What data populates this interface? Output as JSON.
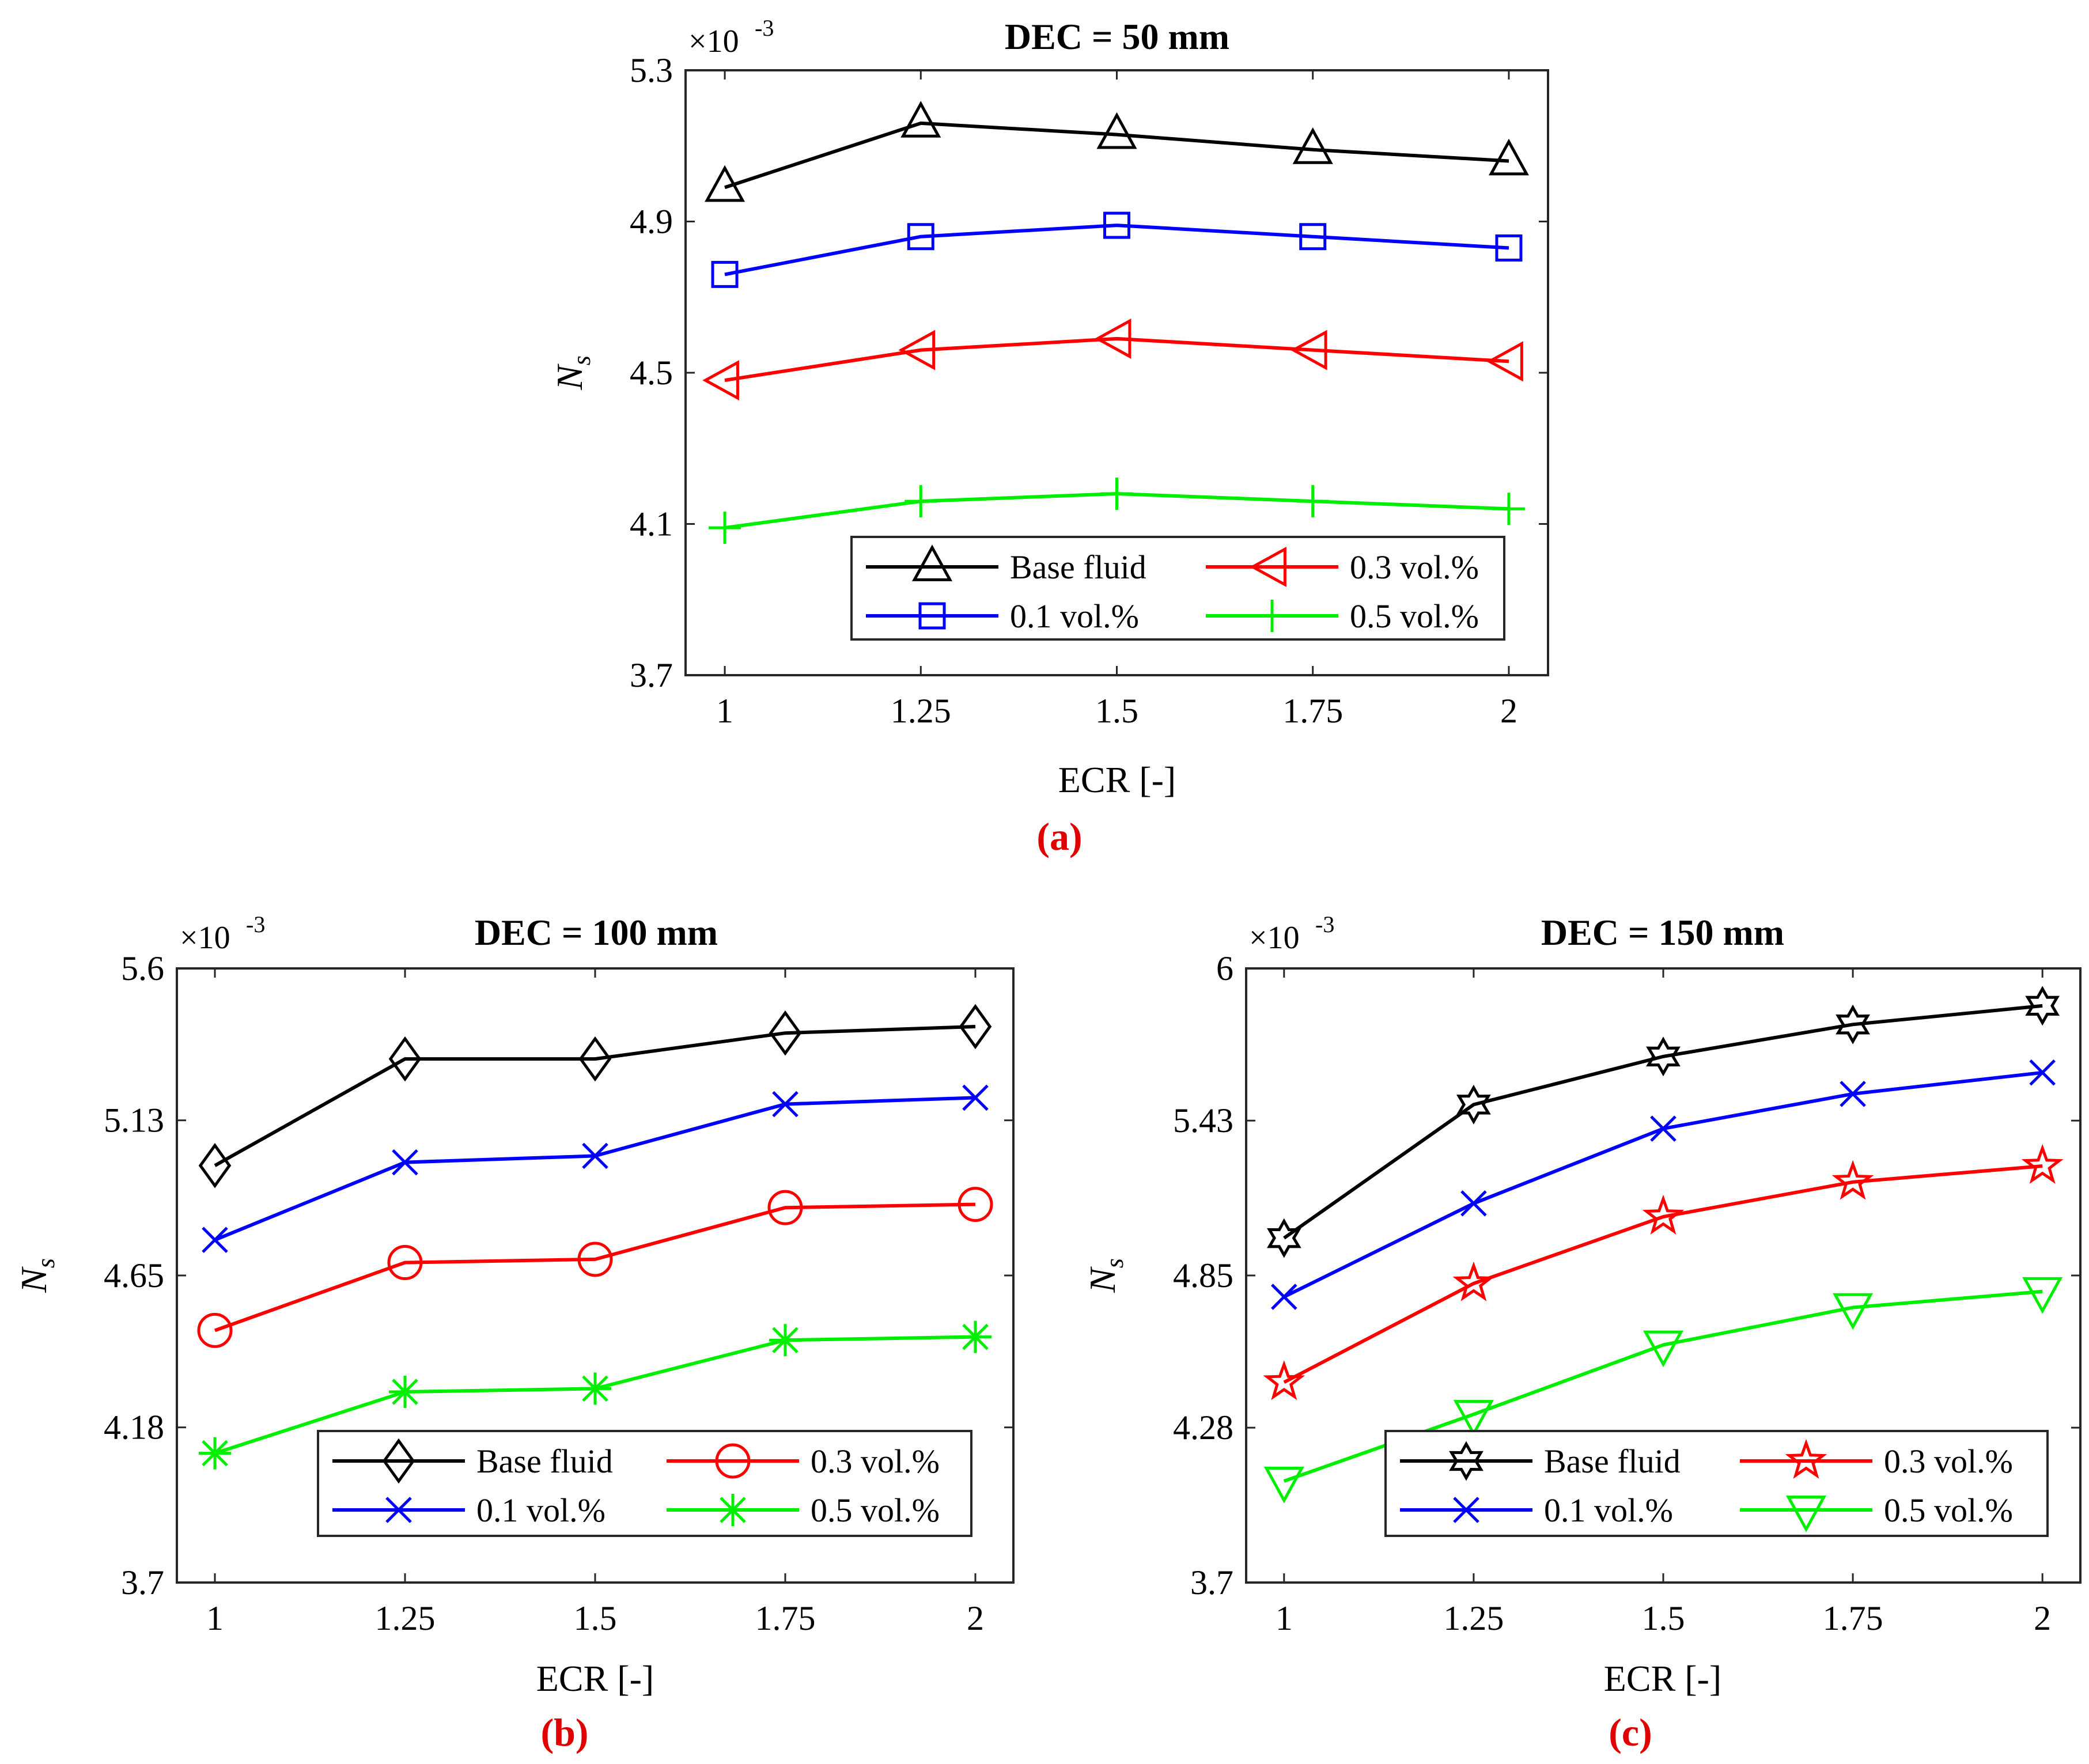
{
  "chart_data": [
    {
      "type": "line",
      "panel_label": "(a)",
      "title": "DEC = 50 mm",
      "xlabel": "ECR [-]",
      "ylabel": "N",
      "ylabel_sub": "s",
      "multiplier": "×10",
      "multiplier_exp": "-3",
      "x": [
        1,
        1.25,
        1.5,
        1.75,
        2
      ],
      "xticks": [
        "1",
        "1.25",
        "1.5",
        "1.75",
        "2"
      ],
      "xlim": [
        0.95,
        2.05
      ],
      "ylim": [
        3.7,
        5.3
      ],
      "yticks": [
        "3.7",
        "4.1",
        "4.5",
        "4.9",
        "5.3"
      ],
      "ytick_values": [
        3.7,
        4.1,
        4.5,
        4.9,
        5.3
      ],
      "grid": false,
      "legend_position": "bottom-right",
      "series": [
        {
          "name": "Base fluid",
          "color": "#000000",
          "marker": "triangle-up",
          "values": [
            4.99,
            5.16,
            5.13,
            5.09,
            5.06
          ]
        },
        {
          "name": "0.1 vol.%",
          "color": "#0000ff",
          "marker": "square",
          "values": [
            4.76,
            4.86,
            4.89,
            4.86,
            4.83
          ]
        },
        {
          "name": "0.3 vol.%",
          "color": "#ff0000",
          "marker": "triangle-left",
          "values": [
            4.48,
            4.56,
            4.59,
            4.56,
            4.53
          ]
        },
        {
          "name": "0.5 vol.%",
          "color": "#00ee00",
          "marker": "plus",
          "values": [
            4.09,
            4.16,
            4.18,
            4.16,
            4.14
          ]
        }
      ]
    },
    {
      "type": "line",
      "panel_label": "(b)",
      "title": "DEC = 100 mm",
      "xlabel": "ECR [-]",
      "ylabel": "N",
      "ylabel_sub": "s",
      "multiplier": "×10",
      "multiplier_exp": "-3",
      "x": [
        1,
        1.25,
        1.5,
        1.75,
        2
      ],
      "xticks": [
        "1",
        "1.25",
        "1.5",
        "1.75",
        "2"
      ],
      "xlim": [
        0.95,
        2.05
      ],
      "ylim": [
        3.7,
        5.6
      ],
      "yticks": [
        "3.7",
        "4.18",
        "4.65",
        "5.13",
        "5.6"
      ],
      "ytick_values": [
        3.7,
        4.18,
        4.65,
        5.13,
        5.6
      ],
      "grid": false,
      "legend_position": "bottom-right",
      "series": [
        {
          "name": "Base fluid",
          "color": "#000000",
          "marker": "diamond",
          "values": [
            4.99,
            5.32,
            5.32,
            5.4,
            5.42
          ]
        },
        {
          "name": "0.1 vol.%",
          "color": "#0000ff",
          "marker": "x",
          "values": [
            4.76,
            5.0,
            5.02,
            5.18,
            5.2
          ]
        },
        {
          "name": "0.3 vol.%",
          "color": "#ff0000",
          "marker": "circle",
          "values": [
            4.48,
            4.69,
            4.7,
            4.86,
            4.87
          ]
        },
        {
          "name": "0.5 vol.%",
          "color": "#00ee00",
          "marker": "asterisk",
          "values": [
            4.1,
            4.29,
            4.3,
            4.45,
            4.46
          ]
        }
      ]
    },
    {
      "type": "line",
      "panel_label": "(c)",
      "title": "DEC = 150 mm",
      "xlabel": "ECR [-]",
      "ylabel": "N",
      "ylabel_sub": "s",
      "multiplier": "×10",
      "multiplier_exp": "-3",
      "x": [
        1,
        1.25,
        1.5,
        1.75,
        2
      ],
      "xticks": [
        "1",
        "1.25",
        "1.5",
        "1.75",
        "2"
      ],
      "xlim": [
        0.95,
        2.05
      ],
      "ylim": [
        3.7,
        6.0
      ],
      "yticks": [
        "3.7",
        "4.28",
        "4.85",
        "5.43",
        "6"
      ],
      "ytick_values": [
        3.7,
        4.28,
        4.85,
        5.43,
        6.0
      ],
      "grid": false,
      "legend_position": "bottom-right",
      "series": [
        {
          "name": "Base fluid",
          "color": "#000000",
          "marker": "hexagram",
          "values": [
            4.99,
            5.49,
            5.67,
            5.79,
            5.86
          ]
        },
        {
          "name": "0.1 vol.%",
          "color": "#0000ff",
          "marker": "x",
          "values": [
            4.77,
            5.12,
            5.4,
            5.53,
            5.61
          ]
        },
        {
          "name": "0.3 vol.%",
          "color": "#ff0000",
          "marker": "pentagram",
          "values": [
            4.45,
            4.82,
            5.07,
            5.2,
            5.26
          ]
        },
        {
          "name": "0.5 vol.%",
          "color": "#00ee00",
          "marker": "triangle-down",
          "values": [
            4.08,
            4.33,
            4.59,
            4.73,
            4.79
          ]
        }
      ]
    }
  ]
}
